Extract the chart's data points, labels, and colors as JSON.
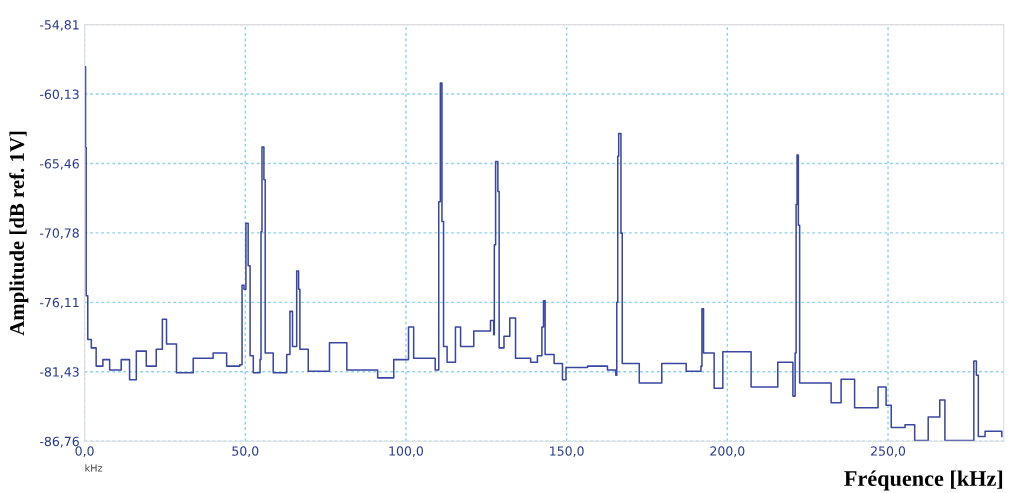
{
  "chart_data": {
    "type": "step",
    "xlabel": "Fréquence [kHz]",
    "ylabel": "Amplitude [dB ref. 1V]",
    "annotations": [
      "kHz"
    ],
    "xlim": [
      0,
      286
    ],
    "ylim": [
      -86.76,
      -54.81
    ],
    "xticks": [
      {
        "value": 0,
        "label": "0,0"
      },
      {
        "value": 50,
        "label": "50,0"
      },
      {
        "value": 100,
        "label": "100,0"
      },
      {
        "value": 150,
        "label": "150,0"
      },
      {
        "value": 200,
        "label": "200,0"
      },
      {
        "value": 250,
        "label": "250,0"
      }
    ],
    "yticks": [
      {
        "value": -86.76,
        "label": "-86,76"
      },
      {
        "value": -81.43,
        "label": "-81,43"
      },
      {
        "value": -76.11,
        "label": "-76,11"
      },
      {
        "value": -70.78,
        "label": "-70,78"
      },
      {
        "value": -65.46,
        "label": "-65,46"
      },
      {
        "value": -60.13,
        "label": "-60,13"
      },
      {
        "value": -54.81,
        "label": "-54,81"
      }
    ],
    "grid": true,
    "line_style": "solid",
    "marker": "none",
    "series": [
      {
        "color": "#3a46a0",
        "x": [
          0,
          0.3,
          0.5,
          1.0,
          2.1,
          3.6,
          5.7,
          7.8,
          11.4,
          14.0,
          16.1,
          19.2,
          22.3,
          24.2,
          25.5,
          28.6,
          33.8,
          40.0,
          44.2,
          48.3,
          49.0,
          49.6,
          50.2,
          50.9,
          51.5,
          52.5,
          54.6,
          54.9,
          55.2,
          55.8,
          56.2,
          58.7,
          62.9,
          63.9,
          64.7,
          66.0,
          66.6,
          67.0,
          69.6,
          76.2,
          81.6,
          91.2,
          96.2,
          100.8,
          102.4,
          109.1,
          110.2,
          110.7,
          111.2,
          111.7,
          112.8,
          115.4,
          117.0,
          121.1,
          126.3,
          127.3,
          127.5,
          127.9,
          128.6,
          129.0,
          130.5,
          132.3,
          134.1,
          138.8,
          140.9,
          142.3,
          142.8,
          143.3,
          146.1,
          148.7,
          149.8,
          156.5,
          162.7,
          165.3,
          165.6,
          165.9,
          166.2,
          166.9,
          167.3,
          172.6,
          179.6,
          187.2,
          191.8,
          192.1,
          192.6,
          195.9,
          198.6,
          207.4,
          215.7,
          220.4,
          221.1,
          221.4,
          221.7,
          222.1,
          222.5,
          227.1,
          232.3,
          235.4,
          239.6,
          246.9,
          249.4,
          251.0,
          255.3,
          258.3,
          262.5,
          266.1,
          267.7,
          270.7,
          276.0,
          276.7,
          277.5,
          278.1,
          280.2,
          285.4
        ],
        "values": [
          -58.04,
          -64.23,
          -75.6,
          -78.95,
          -79.6,
          -81.0,
          -80.5,
          -81.3,
          -80.5,
          -82.05,
          -79.85,
          -81.0,
          -79.7,
          -77.4,
          -79.3,
          -81.5,
          -80.4,
          -80.0,
          -81.0,
          -80.9,
          -74.8,
          -75.1,
          -70.05,
          -73.3,
          -80.2,
          -81.5,
          -80.5,
          -70.7,
          -64.2,
          -66.7,
          -80.0,
          -81.5,
          -80.1,
          -76.8,
          -79.5,
          -73.7,
          -75.1,
          -79.7,
          -81.4,
          -79.2,
          -81.3,
          -81.9,
          -80.5,
          -78.0,
          -80.4,
          -81.3,
          -68.4,
          -59.28,
          -69.9,
          -79.5,
          -80.7,
          -78.0,
          -79.5,
          -78.3,
          -77.5,
          -78.6,
          -71.7,
          -65.3,
          -67.6,
          -79.6,
          -78.7,
          -77.3,
          -80.4,
          -80.7,
          -80.2,
          -78.0,
          -75.98,
          -80.1,
          -80.8,
          -82.05,
          -81.1,
          -81.0,
          -81.3,
          -81.7,
          -76.1,
          -64.9,
          -63.15,
          -70.8,
          -80.8,
          -82.3,
          -80.8,
          -81.4,
          -81.0,
          -76.6,
          -80.0,
          -82.7,
          -79.9,
          -82.6,
          -80.7,
          -83.3,
          -80.0,
          -68.6,
          -64.8,
          -70.2,
          -82.3,
          -82.3,
          -83.8,
          -82.0,
          -84.2,
          -82.6,
          -84.0,
          -85.7,
          -85.5,
          -86.7,
          -84.9,
          -83.6,
          -86.7,
          -86.7,
          -86.7,
          -80.6,
          -81.7,
          -86.4,
          -86.0,
          -86.4
        ]
      }
    ]
  }
}
